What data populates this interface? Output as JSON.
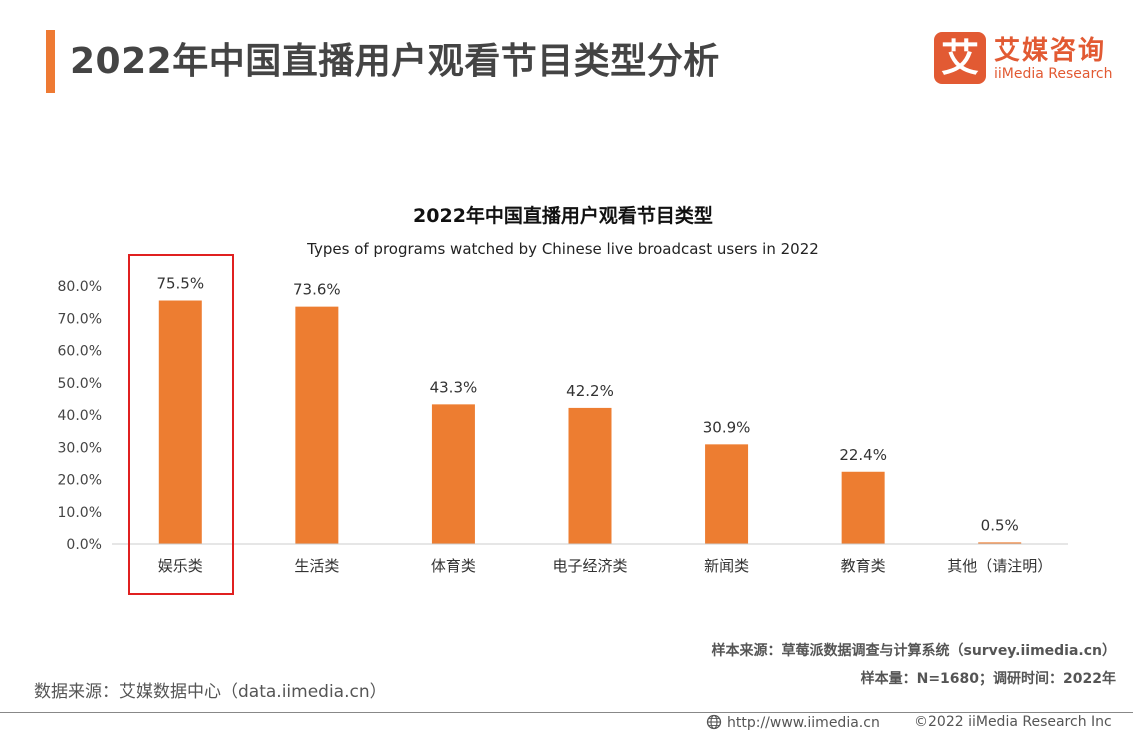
{
  "header": {
    "title": "2022年中国直播用户观看节目类型分析",
    "logo_mark": "艾",
    "logo_cn": "艾媒咨询",
    "logo_en": "iiMedia Research"
  },
  "colors": {
    "accent": "#ee7a33",
    "bar": "#ed7d31",
    "highlight": "#e02020",
    "logo": "#e25a33"
  },
  "chart_data": {
    "type": "bar",
    "title": "2022年中国直播用户观看节目类型",
    "subtitle": "Types of programs watched by Chinese live broadcast users in 2022",
    "categories": [
      "娱乐类",
      "生活类",
      "体育类",
      "电子经济类",
      "新闻类",
      "教育类",
      "其他（请注明）"
    ],
    "values": [
      75.5,
      73.6,
      43.3,
      42.2,
      30.9,
      22.4,
      0.5
    ],
    "value_labels": [
      "75.5%",
      "73.6%",
      "43.3%",
      "42.2%",
      "30.9%",
      "22.4%",
      "0.5%"
    ],
    "y_ticks": [
      "0.0%",
      "10.0%",
      "20.0%",
      "30.0%",
      "40.0%",
      "50.0%",
      "60.0%",
      "70.0%",
      "80.0%"
    ],
    "ylim": [
      0,
      80
    ],
    "grid": false,
    "highlighted_category": "娱乐类"
  },
  "footer": {
    "sample_source": "样本来源：草莓派数据调查与计算系统（survey.iimedia.cn）",
    "sample_size": "样本量：N=1680；调研时间：2022年",
    "data_source": "数据来源：艾媒数据中心（data.iimedia.cn）",
    "url": "http://www.iimedia.cn",
    "copyright": "©2022  iiMedia Research  Inc"
  }
}
